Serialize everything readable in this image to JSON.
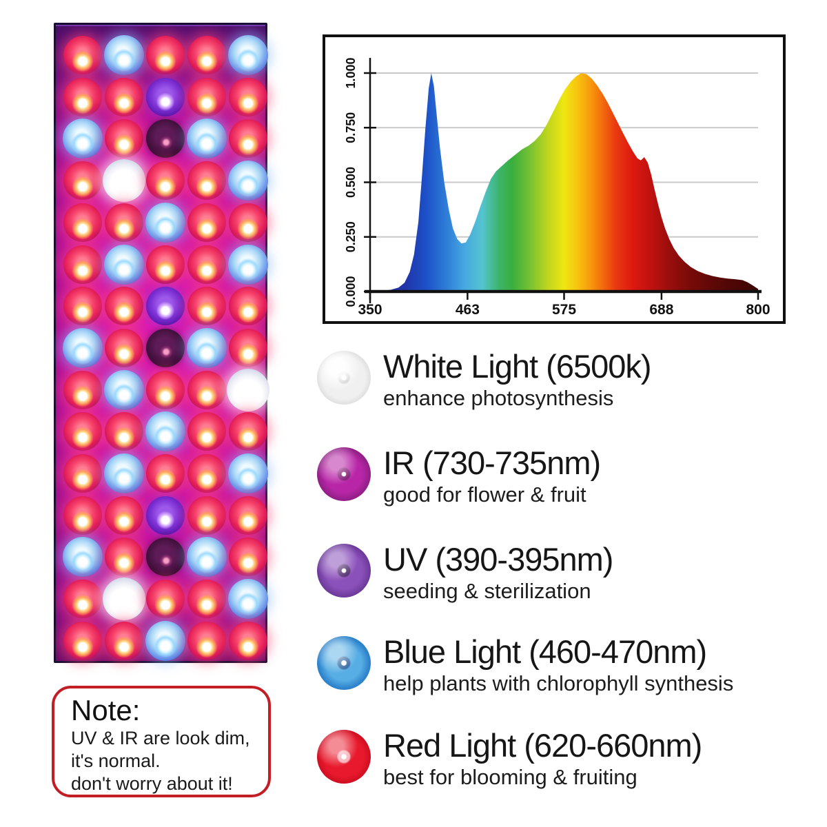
{
  "panel": {
    "description": "LED grow light panel photo, 5 columns x 15 rows of LEDs on magenta board",
    "grid": [
      [
        "R",
        "B",
        "R",
        "R",
        "B"
      ],
      [
        "R",
        "R",
        "V",
        "R",
        "R"
      ],
      [
        "B",
        "R",
        "I",
        "B",
        "R"
      ],
      [
        "R",
        "W",
        "R",
        "R",
        "B"
      ],
      [
        "R",
        "R",
        "B",
        "R",
        "R"
      ],
      [
        "R",
        "B",
        "R",
        "R",
        "B"
      ],
      [
        "R",
        "R",
        "V",
        "R",
        "R"
      ],
      [
        "B",
        "R",
        "I",
        "B",
        "R"
      ],
      [
        "R",
        "B",
        "R",
        "R",
        "W"
      ],
      [
        "R",
        "R",
        "B",
        "R",
        "R"
      ],
      [
        "R",
        "B",
        "R",
        "R",
        "B"
      ],
      [
        "R",
        "R",
        "V",
        "R",
        "R"
      ],
      [
        "B",
        "R",
        "I",
        "B",
        "R"
      ],
      [
        "R",
        "W",
        "R",
        "R",
        "B"
      ],
      [
        "R",
        "R",
        "B",
        "R",
        "R"
      ]
    ],
    "led_types": {
      "R": {
        "name": "red-led",
        "color": "#f6436b"
      },
      "B": {
        "name": "blue-led",
        "color": "#a8d6f6"
      },
      "W": {
        "name": "white-led",
        "color": "#ffffff"
      },
      "V": {
        "name": "uv-led",
        "color": "#7c30d4"
      },
      "I": {
        "name": "ir-led",
        "color": "#451140"
      }
    },
    "board_color": "#c915a4"
  },
  "chart_data": {
    "type": "area",
    "title": "",
    "xlabel": "",
    "ylabel": "",
    "xlim": [
      350,
      800
    ],
    "ylim": [
      0,
      1
    ],
    "x_ticks": [
      "350",
      "463",
      "575",
      "688",
      "800"
    ],
    "y_ticks": [
      "0.000",
      "0.250",
      "0.500",
      "0.750",
      "1.000"
    ],
    "grid": "horizontal",
    "legend_position": "none",
    "points": [
      [
        350,
        0
      ],
      [
        362,
        0.003
      ],
      [
        374,
        0.008
      ],
      [
        383,
        0.018
      ],
      [
        390,
        0.04
      ],
      [
        396,
        0.09
      ],
      [
        401,
        0.17
      ],
      [
        406,
        0.32
      ],
      [
        410,
        0.52
      ],
      [
        414,
        0.74
      ],
      [
        418,
        0.93
      ],
      [
        421,
        1.0
      ],
      [
        424,
        0.94
      ],
      [
        427,
        0.82
      ],
      [
        431,
        0.66
      ],
      [
        436,
        0.5
      ],
      [
        441,
        0.38
      ],
      [
        446,
        0.29
      ],
      [
        451,
        0.24
      ],
      [
        456,
        0.22
      ],
      [
        461,
        0.225
      ],
      [
        466,
        0.26
      ],
      [
        472,
        0.32
      ],
      [
        478,
        0.39
      ],
      [
        484,
        0.455
      ],
      [
        490,
        0.515
      ],
      [
        496,
        0.55
      ],
      [
        503,
        0.575
      ],
      [
        510,
        0.6
      ],
      [
        518,
        0.625
      ],
      [
        526,
        0.65
      ],
      [
        534,
        0.668
      ],
      [
        541,
        0.69
      ],
      [
        548,
        0.72
      ],
      [
        555,
        0.765
      ],
      [
        562,
        0.82
      ],
      [
        569,
        0.875
      ],
      [
        576,
        0.925
      ],
      [
        583,
        0.962
      ],
      [
        589,
        0.985
      ],
      [
        595,
        1.0
      ],
      [
        601,
        0.995
      ],
      [
        607,
        0.975
      ],
      [
        613,
        0.945
      ],
      [
        619,
        0.91
      ],
      [
        625,
        0.868
      ],
      [
        631,
        0.822
      ],
      [
        637,
        0.775
      ],
      [
        643,
        0.728
      ],
      [
        649,
        0.682
      ],
      [
        655,
        0.64
      ],
      [
        660,
        0.61
      ],
      [
        664,
        0.6
      ],
      [
        668,
        0.615
      ],
      [
        672,
        0.59
      ],
      [
        676,
        0.535
      ],
      [
        680,
        0.465
      ],
      [
        684,
        0.4
      ],
      [
        688,
        0.34
      ],
      [
        692,
        0.29
      ],
      [
        697,
        0.24
      ],
      [
        702,
        0.2
      ],
      [
        708,
        0.165
      ],
      [
        715,
        0.135
      ],
      [
        722,
        0.112
      ],
      [
        730,
        0.094
      ],
      [
        738,
        0.081
      ],
      [
        747,
        0.071
      ],
      [
        756,
        0.064
      ],
      [
        765,
        0.059
      ],
      [
        774,
        0.056
      ],
      [
        782,
        0.052
      ],
      [
        788,
        0.042
      ],
      [
        793,
        0.03
      ],
      [
        797,
        0.02
      ],
      [
        800,
        0.012
      ]
    ],
    "fill_stops": [
      {
        "offset": 0.0,
        "color": "#20309e"
      },
      {
        "offset": 0.089,
        "color": "#2233a8"
      },
      {
        "offset": 0.144,
        "color": "#1c50c8"
      },
      {
        "offset": 0.2,
        "color": "#2f80d8"
      },
      {
        "offset": 0.244,
        "color": "#47a8e0"
      },
      {
        "offset": 0.289,
        "color": "#55c4cf"
      },
      {
        "offset": 0.333,
        "color": "#3cb469"
      },
      {
        "offset": 0.367,
        "color": "#3aae3c"
      },
      {
        "offset": 0.411,
        "color": "#74c133"
      },
      {
        "offset": 0.456,
        "color": "#bcd51d"
      },
      {
        "offset": 0.5,
        "color": "#efe712"
      },
      {
        "offset": 0.533,
        "color": "#f7c50f"
      },
      {
        "offset": 0.567,
        "color": "#f79a0c"
      },
      {
        "offset": 0.6,
        "color": "#f26b0d"
      },
      {
        "offset": 0.633,
        "color": "#e83a10"
      },
      {
        "offset": 0.678,
        "color": "#dd1810"
      },
      {
        "offset": 0.722,
        "color": "#c01210"
      },
      {
        "offset": 0.767,
        "color": "#9c0e0c"
      },
      {
        "offset": 0.822,
        "color": "#7a0b09"
      },
      {
        "offset": 0.889,
        "color": "#5c0807"
      },
      {
        "offset": 1.0,
        "color": "#3a0504"
      }
    ],
    "gridline_color": "#c9c9c9",
    "axis_color": "#111111"
  },
  "legend": {
    "items": [
      {
        "id": "white",
        "title": "White Light (6500k)",
        "subtitle": "enhance photosynthesis",
        "color": "#e8e8e8"
      },
      {
        "id": "ir",
        "title": "IR (730-735nm)",
        "subtitle": "good for flower & fruit",
        "color": "#b826a7"
      },
      {
        "id": "uv",
        "title": "UV (390-395nm)",
        "subtitle": "seeding & sterilization",
        "color": "#8b51ba"
      },
      {
        "id": "blue",
        "title": "Blue Light (460-470nm)",
        "subtitle": "help plants with chlorophyll synthesis",
        "color": "#57aee4"
      },
      {
        "id": "red",
        "title": "Red Light (620-660nm)",
        "subtitle": "best for blooming & fruiting",
        "color": "#e8192c"
      }
    ]
  },
  "note": {
    "title": "Note:",
    "lines": [
      "UV & IR are look dim,",
      "it's normal.",
      "don't worry about it!"
    ],
    "border_color": "#c41e25"
  }
}
